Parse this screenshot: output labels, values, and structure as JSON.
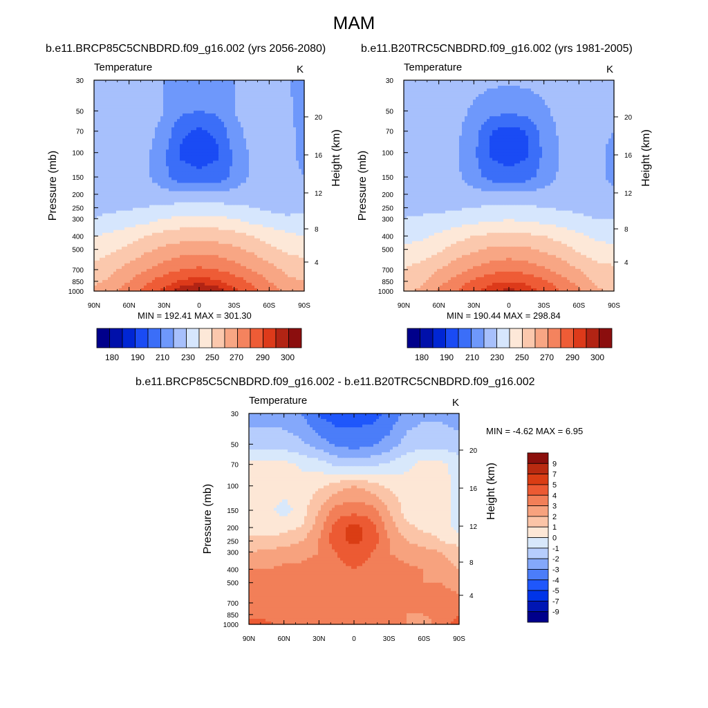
{
  "figure": {
    "title": "MAM"
  },
  "colors": {
    "abs_palette": [
      "#00008b",
      "#0010aa",
      "#0026d4",
      "#1a4bf4",
      "#3b6ef8",
      "#6e98fb",
      "#a7c0fc",
      "#d6e6fd",
      "#fde8d8",
      "#fbc8ad",
      "#f8a684",
      "#f4835e",
      "#ee5c36",
      "#dd3a1a",
      "#b22414",
      "#8b0e0e"
    ],
    "diff_palette": [
      "#00008b",
      "#0016b4",
      "#0034e8",
      "#1f57fb",
      "#4b7df9",
      "#84a8fb",
      "#b6cdfd",
      "#d8e8fb",
      "#fde7d6",
      "#fbc4a7",
      "#f7a27e",
      "#f27f58",
      "#ec5a33",
      "#da3d14",
      "#b92a10",
      "#8b0f0c"
    ]
  },
  "panels": [
    {
      "case_title": "b.e11.BRCP85C5CNBDRD.f09_g16.002 (yrs 2056-2080)",
      "field_label": "Temperature",
      "units": "K",
      "minmax": "MIN = 192.41  MAX = 301.30",
      "y_label": "Pressure (mb)",
      "y2_label": "Height (km)"
    },
    {
      "case_title": "b.e11.B20TRC5CNBDRD.f09_g16.002 (yrs 1981-2005)",
      "field_label": "Temperature",
      "units": "K",
      "minmax": "MIN = 190.44  MAX = 298.84",
      "y_label": "Pressure (mb)",
      "y2_label": "Height (km)"
    },
    {
      "case_title": "b.e11.BRCP85C5CNBDRD.f09_g16.002 - b.e11.B20TRC5CNBDRD.f09_g16.002",
      "field_label": "Temperature",
      "units": "K",
      "minmax": "MIN =  -4.62  MAX =   6.95",
      "y_label": "Pressure (mb)",
      "y2_label": "Height (km)"
    }
  ],
  "chart_data": [
    {
      "type": "heatmap",
      "panel": "future",
      "x_ticks": [
        "90N",
        "60N",
        "30N",
        "0",
        "30S",
        "60S",
        "90S"
      ],
      "x_values": [
        90,
        60,
        30,
        0,
        -30,
        -60,
        -90
      ],
      "y_ticks": [
        30,
        50,
        70,
        100,
        150,
        200,
        250,
        300,
        400,
        500,
        700,
        850,
        1000
      ],
      "y_scale": "log",
      "ylim": [
        30,
        1000
      ],
      "y2_ticks": [
        4,
        8,
        12,
        16,
        20
      ],
      "colorbar_labels": [
        180,
        190,
        210,
        230,
        250,
        270,
        290,
        300
      ],
      "colorbar_levels": [
        180,
        185,
        190,
        200,
        210,
        220,
        230,
        240,
        250,
        260,
        270,
        280,
        290,
        295,
        300
      ],
      "min": 192.41,
      "max": 301.3,
      "field": {
        "lat": [
          90,
          75,
          60,
          45,
          30,
          15,
          0,
          -15,
          -30,
          -45,
          -60,
          -75,
          -90
        ],
        "plev": [
          30,
          50,
          70,
          100,
          150,
          200,
          250,
          300,
          400,
          500,
          700,
          850,
          1000
        ],
        "values": [
          [
            226,
            226,
            226,
            226,
            220,
            214,
            212,
            214,
            220,
            226,
            226,
            222,
            214
          ],
          [
            226,
            226,
            226,
            226,
            220,
            212,
            210,
            212,
            220,
            226,
            226,
            222,
            216
          ],
          [
            226,
            226,
            226,
            224,
            216,
            202,
            198,
            202,
            216,
            224,
            226,
            222,
            218
          ],
          [
            226,
            226,
            226,
            222,
            212,
            198,
            196,
            198,
            212,
            222,
            226,
            222,
            218
          ],
          [
            226,
            226,
            226,
            222,
            212,
            204,
            202,
            204,
            212,
            222,
            226,
            222,
            220
          ],
          [
            226,
            226,
            226,
            226,
            224,
            222,
            222,
            222,
            224,
            226,
            226,
            222,
            220
          ],
          [
            228,
            228,
            229,
            230,
            232,
            234,
            234,
            234,
            232,
            230,
            228,
            226,
            228
          ],
          [
            230,
            232,
            234,
            236,
            240,
            242,
            243,
            242,
            240,
            236,
            234,
            232,
            232
          ],
          [
            240,
            242,
            246,
            250,
            254,
            256,
            257,
            256,
            254,
            250,
            246,
            242,
            240
          ],
          [
            244,
            248,
            252,
            258,
            262,
            265,
            266,
            265,
            262,
            258,
            252,
            248,
            246
          ],
          [
            254,
            258,
            264,
            270,
            275,
            280,
            282,
            280,
            275,
            270,
            264,
            258,
            255
          ],
          [
            258,
            262,
            270,
            278,
            286,
            292,
            294,
            292,
            286,
            278,
            270,
            262,
            260
          ],
          [
            262,
            266,
            276,
            284,
            292,
            298,
            300,
            298,
            292,
            284,
            276,
            266,
            262
          ]
        ]
      }
    },
    {
      "type": "heatmap",
      "panel": "historical",
      "x_ticks": [
        "90N",
        "60N",
        "30N",
        "0",
        "30S",
        "60S",
        "90S"
      ],
      "x_values": [
        90,
        60,
        30,
        0,
        -30,
        -60,
        -90
      ],
      "y_ticks": [
        30,
        50,
        70,
        100,
        150,
        200,
        250,
        300,
        400,
        500,
        700,
        850,
        1000
      ],
      "y_scale": "log",
      "ylim": [
        30,
        1000
      ],
      "y2_ticks": [
        4,
        8,
        12,
        16,
        20
      ],
      "colorbar_labels": [
        180,
        190,
        210,
        230,
        250,
        270,
        290,
        300
      ],
      "colorbar_levels": [
        180,
        185,
        190,
        200,
        210,
        220,
        230,
        240,
        250,
        260,
        270,
        280,
        290,
        295,
        300
      ],
      "min": 190.44,
      "max": 298.84,
      "field": {
        "lat": [
          90,
          75,
          60,
          45,
          30,
          15,
          0,
          -15,
          -30,
          -45,
          -60,
          -75,
          -90
        ],
        "plev": [
          30,
          50,
          70,
          100,
          150,
          200,
          250,
          300,
          400,
          500,
          700,
          850,
          1000
        ],
        "values": [
          [
            226,
            226,
            226,
            226,
            224,
            222,
            222,
            222,
            224,
            226,
            226,
            226,
            226
          ],
          [
            226,
            226,
            226,
            224,
            218,
            214,
            212,
            214,
            218,
            224,
            226,
            224,
            222
          ],
          [
            226,
            226,
            226,
            222,
            214,
            200,
            196,
            200,
            214,
            222,
            226,
            222,
            220
          ],
          [
            226,
            226,
            226,
            222,
            212,
            198,
            194,
            198,
            212,
            222,
            226,
            222,
            218
          ],
          [
            226,
            226,
            226,
            222,
            214,
            206,
            204,
            206,
            214,
            222,
            226,
            222,
            218
          ],
          [
            226,
            226,
            226,
            226,
            224,
            222,
            222,
            222,
            224,
            226,
            226,
            224,
            222
          ],
          [
            228,
            228,
            228,
            229,
            230,
            232,
            232,
            232,
            230,
            229,
            228,
            226,
            226
          ],
          [
            230,
            231,
            232,
            234,
            236,
            238,
            239,
            238,
            236,
            234,
            232,
            230,
            230
          ],
          [
            236,
            238,
            242,
            246,
            250,
            252,
            253,
            252,
            250,
            246,
            242,
            238,
            236
          ],
          [
            242,
            244,
            248,
            254,
            258,
            262,
            263,
            262,
            258,
            254,
            248,
            244,
            242
          ],
          [
            250,
            254,
            260,
            266,
            272,
            276,
            278,
            276,
            272,
            266,
            260,
            254,
            252
          ],
          [
            254,
            258,
            266,
            274,
            282,
            288,
            290,
            288,
            282,
            274,
            266,
            258,
            254
          ],
          [
            258,
            262,
            272,
            280,
            288,
            294,
            297,
            294,
            288,
            280,
            272,
            262,
            258
          ]
        ]
      }
    },
    {
      "type": "heatmap",
      "panel": "difference",
      "x_ticks": [
        "90N",
        "60N",
        "30N",
        "0",
        "30S",
        "60S",
        "90S"
      ],
      "x_values": [
        90,
        60,
        30,
        0,
        -30,
        -60,
        -90
      ],
      "y_ticks": [
        30,
        50,
        70,
        100,
        150,
        200,
        250,
        300,
        400,
        500,
        700,
        850,
        1000
      ],
      "y_scale": "log",
      "ylim": [
        30,
        1000
      ],
      "y2_ticks": [
        4,
        8,
        12,
        16,
        20
      ],
      "colorbar_labels": [
        9,
        7,
        5,
        4,
        3,
        2,
        1,
        0,
        -1,
        -2,
        -3,
        -4,
        -5,
        -7,
        -9
      ],
      "colorbar_levels": [
        -9,
        -7,
        -5,
        -4,
        -3,
        -2,
        -1,
        0,
        1,
        2,
        3,
        4,
        5,
        7,
        9
      ],
      "min": -4.62,
      "max": 6.95,
      "field": {
        "lat": [
          90,
          75,
          60,
          45,
          30,
          15,
          0,
          -15,
          -30,
          -45,
          -60,
          -75,
          -90
        ],
        "plev": [
          30,
          50,
          70,
          100,
          150,
          200,
          250,
          300,
          400,
          500,
          700,
          850,
          1000
        ],
        "values": [
          [
            -2.5,
            -2.5,
            -2.5,
            -3,
            -4.2,
            -4.6,
            -4.5,
            -4.4,
            -3.8,
            -2.6,
            -2.2,
            -2.2,
            -2.5
          ],
          [
            -1.5,
            -1.4,
            -1.5,
            -1.8,
            -2.5,
            -3.2,
            -3.5,
            -3.2,
            -2.6,
            -1.6,
            -1.4,
            -1.5,
            -1.6
          ],
          [
            0.5,
            0.4,
            0.3,
            -0.2,
            -0.5,
            -1.2,
            -1.4,
            -1.2,
            -0.8,
            -0.3,
            0.4,
            0.3,
            -0.5
          ],
          [
            0.4,
            0.6,
            0.6,
            0.5,
            0.8,
            1.5,
            2,
            1.5,
            0.8,
            0.5,
            0.6,
            0.5,
            -0.5
          ],
          [
            0.4,
            0.4,
            -0.5,
            0.5,
            2,
            3.4,
            3.6,
            3.4,
            2,
            0.6,
            0.8,
            0.5,
            -0.5
          ],
          [
            0.6,
            0.6,
            0.7,
            1,
            2.6,
            4.5,
            5.5,
            4.5,
            2.6,
            1.2,
            0.8,
            0.5,
            -0.4
          ],
          [
            1.2,
            1.2,
            1.4,
            2,
            3,
            4.8,
            5.2,
            4.8,
            3,
            2,
            1.5,
            1,
            0.5
          ],
          [
            2,
            2.2,
            2.5,
            2.6,
            3,
            4,
            4.5,
            4,
            3,
            2.6,
            2.4,
            2,
            1.5
          ],
          [
            3,
            3,
            3.2,
            3.3,
            3.5,
            3.8,
            4,
            3.8,
            3.5,
            3.2,
            3,
            2.5,
            2
          ],
          [
            3,
            3,
            3,
            3.1,
            3.2,
            3.3,
            3.4,
            3.3,
            3.2,
            3.2,
            3,
            3,
            2.5
          ],
          [
            3,
            3,
            3,
            3,
            3.1,
            3.2,
            3.2,
            3.2,
            3.1,
            3,
            3,
            3.4,
            3.5
          ],
          [
            3.5,
            3.2,
            3,
            3,
            3.1,
            3.1,
            3.2,
            3.1,
            3.1,
            3,
            3,
            3.5,
            4
          ],
          [
            5,
            4.5,
            3,
            3,
            3.1,
            3.1,
            3.1,
            3.1,
            3.1,
            3,
            2.5,
            3.5,
            4.5
          ]
        ]
      }
    }
  ]
}
